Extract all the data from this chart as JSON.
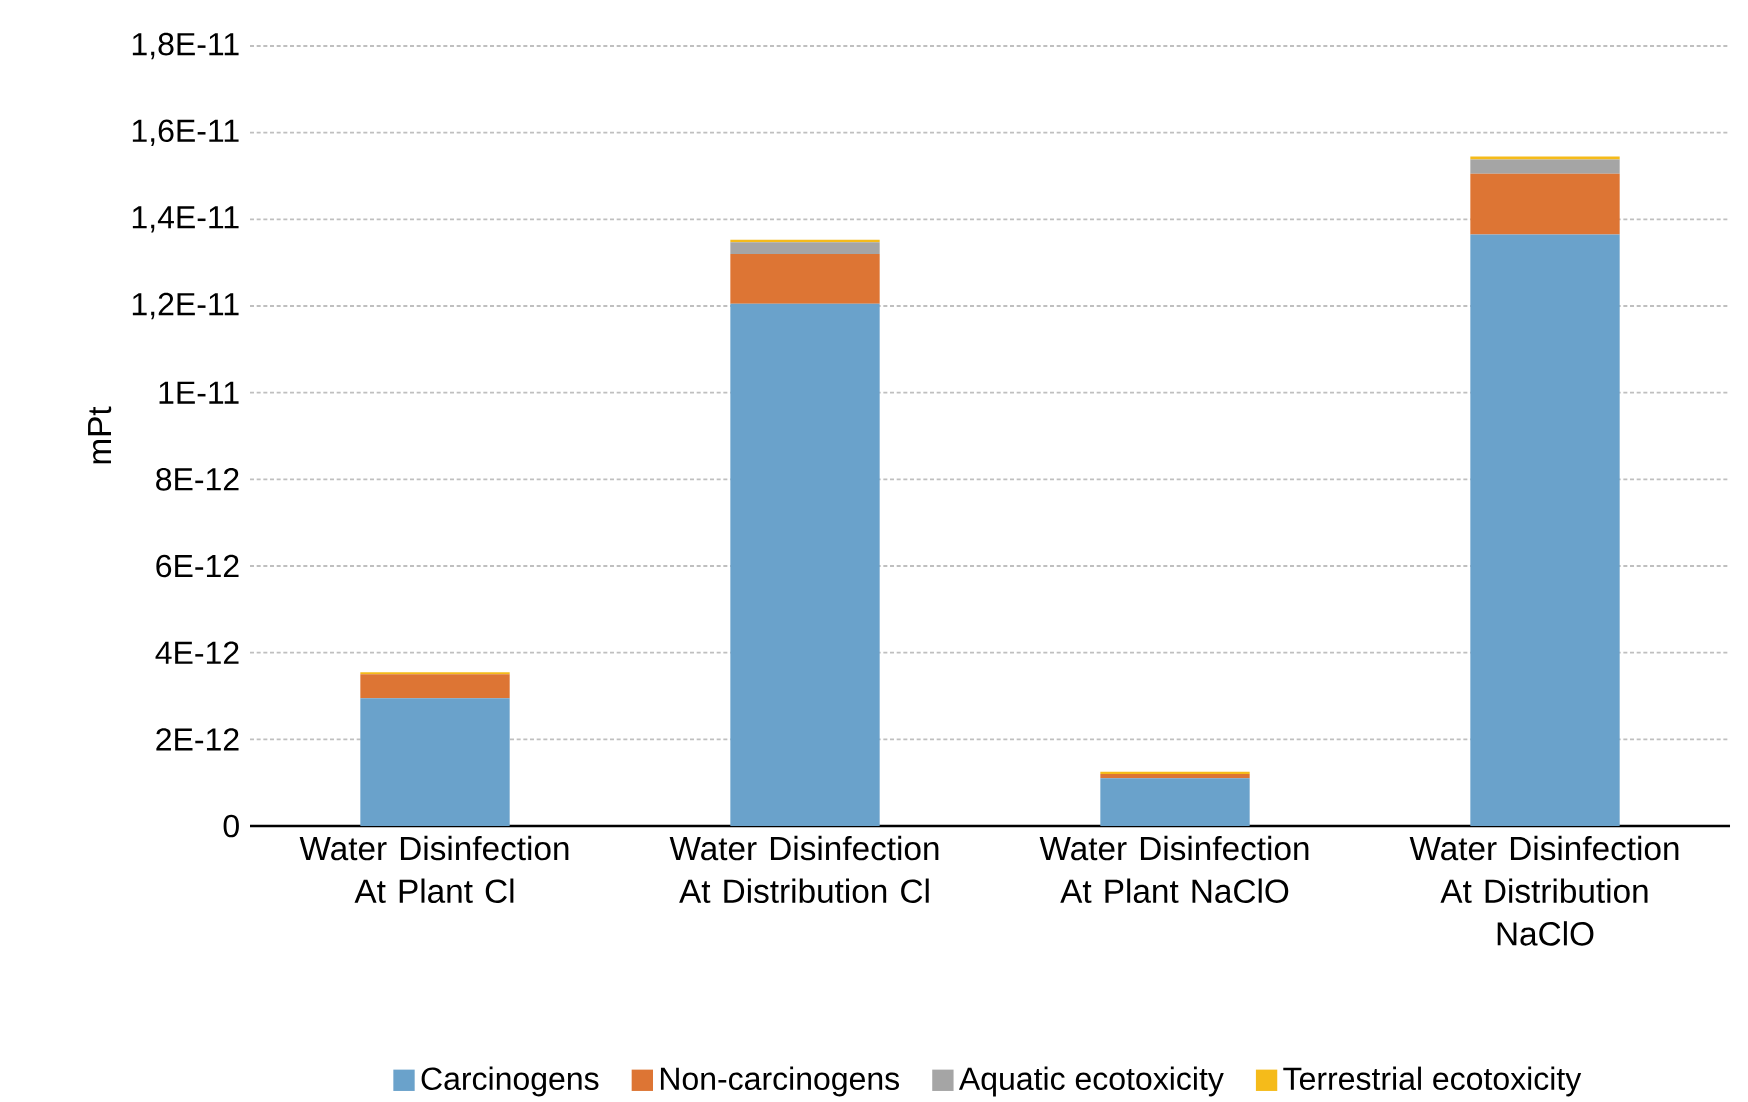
{
  "chart_data": {
    "type": "bar",
    "stacked": true,
    "ylabel": "mPt",
    "categories": [
      "Water Disinfection At Plant Cl",
      "Water Disinfection At Distribution Cl",
      "Water Disinfection At Plant NaClO",
      "Water Disinfection At Distribution NaClO"
    ],
    "series": [
      {
        "name": "Carcinogens",
        "color": "#6aa2cb",
        "values": [
          2.95e-12,
          1.205e-11,
          1.1e-12,
          1.365e-11
        ]
      },
      {
        "name": "Non-carcinogens",
        "color": "#dd7534",
        "values": [
          5.5e-13,
          1.15e-12,
          1e-13,
          1.4e-12
        ]
      },
      {
        "name": "Aquatic ecotoxicity",
        "color": "#a5a5a5",
        "values": [
          null,
          2.7e-13,
          null,
          3.3e-13
        ]
      },
      {
        "name": "Terrestrial ecotoxicity",
        "color": "#f5bb1a",
        "values": [
          5e-14,
          6e-14,
          5e-14,
          7e-14
        ]
      }
    ],
    "ylim": [
      0,
      1.8e-11
    ],
    "yticks": [
      0,
      {
        "value": 2e-12,
        "label": "2E-12"
      },
      {
        "value": 4e-12,
        "label": "4E-12"
      },
      {
        "value": 6e-12,
        "label": "6E-12"
      },
      {
        "value": 8e-12,
        "label": "8E-12"
      },
      {
        "value": 1e-11,
        "label": "1E-11"
      },
      {
        "value": 1.2e-11,
        "label": "1,2E-11"
      },
      {
        "value": 1.4e-11,
        "label": "1,4E-11"
      },
      {
        "value": 1.6e-11,
        "label": "1,6E-11"
      },
      {
        "value": 1.8e-11,
        "label": "1,8E-11"
      }
    ],
    "grid": "y",
    "legend": "bottom"
  }
}
